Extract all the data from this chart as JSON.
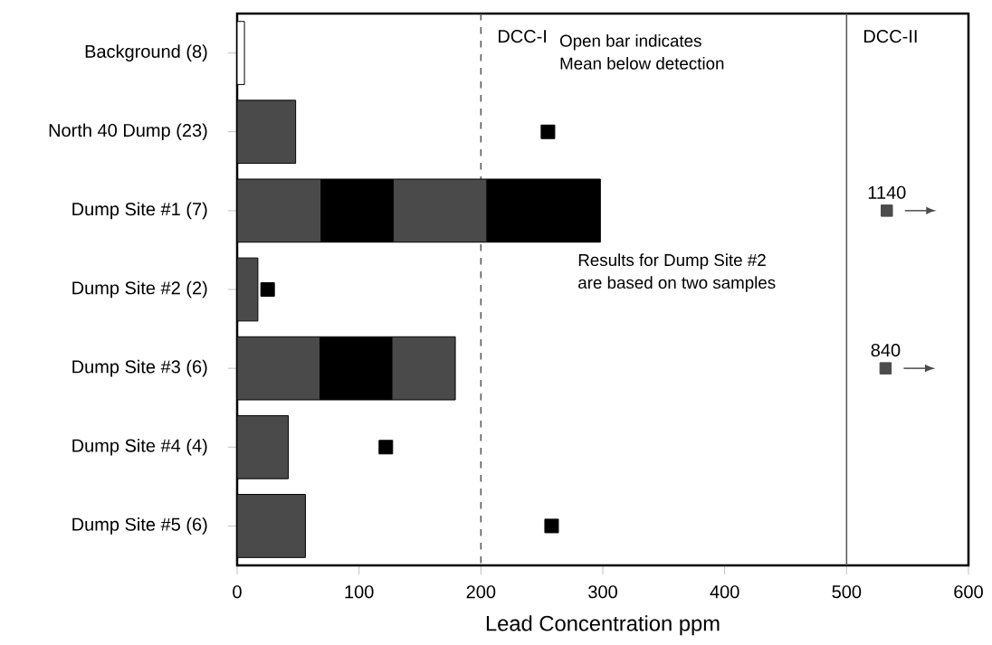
{
  "chart_data": {
    "type": "bar",
    "orientation": "horizontal",
    "stacked": true,
    "xlabel": "Lead Concentration ppm",
    "categories": [
      "Background (8)",
      "North 40 Dump (23)",
      "Dump Site #1 (7)",
      "Dump Site #2 (2)",
      "Dump Site #3 (6)",
      "Dump Site #4 (4)",
      "Dump Site #5 (6)"
    ],
    "series": [
      {
        "colors": [
          "#ffffff",
          "#4a4a4a",
          "#4a4a4a",
          "#4a4a4a",
          "#4a4a4a",
          "#4a4a4a",
          "#4a4a4a"
        ],
        "values": [
          6,
          48,
          69,
          17,
          68,
          42,
          56
        ]
      },
      {
        "color": "#000000",
        "values": [
          null,
          null,
          59,
          null,
          59,
          null,
          null
        ]
      },
      {
        "color": "#4a4a4a",
        "values": [
          null,
          null,
          77,
          null,
          52,
          null,
          null
        ]
      },
      {
        "color": "#000000",
        "values": [
          null,
          null,
          93,
          null,
          null,
          null,
          null
        ]
      },
      {
        "type": "scatter",
        "color": "#000000",
        "marker": "square",
        "values": [
          null,
          255,
          null,
          25,
          null,
          122,
          258
        ]
      }
    ],
    "xlim": [
      0,
      600
    ],
    "xticks": [
      0,
      100,
      200,
      300,
      400,
      500,
      600
    ],
    "grid": false,
    "ref_lines": [
      {
        "axis": "x",
        "value": 200,
        "label": "DCC-I",
        "line_style": "dashed"
      },
      {
        "axis": "x",
        "value": 500,
        "label": "DCC-II",
        "line_style": "solid"
      }
    ],
    "annotations": [
      "Open bar indicates",
      "Mean below detection",
      "Results for Dump Site #2",
      "are based on two samples",
      {
        "text": "1140",
        "x": 533,
        "y": "Dump Site #1 (7)"
      },
      {
        "text": "840",
        "x": 532,
        "y": "Dump Site #3 (6)"
      }
    ]
  }
}
